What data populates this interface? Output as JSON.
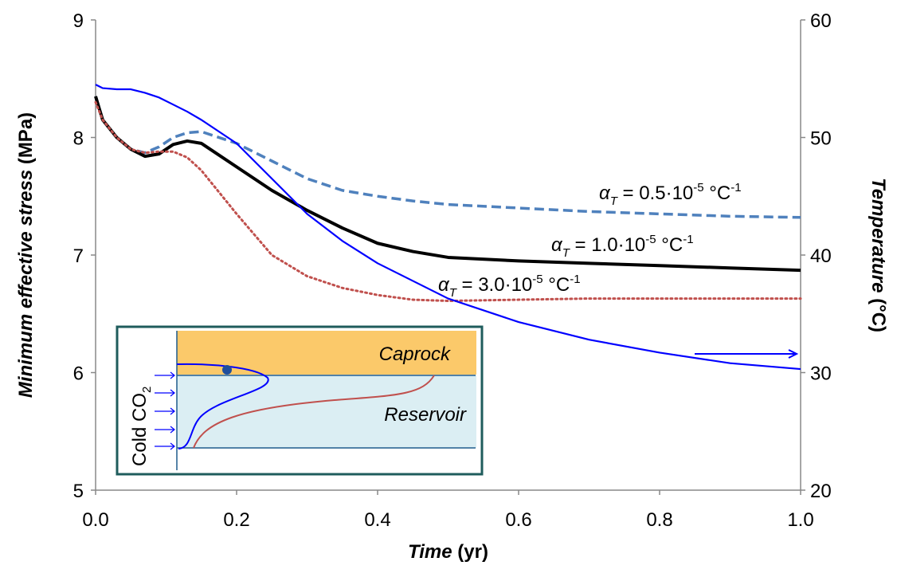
{
  "chart_data": {
    "type": "line",
    "x_label": {
      "main": "Time",
      "unit": "(yr)"
    },
    "y_label": {
      "main": "Minimum effective stress",
      "unit": "(MPa)"
    },
    "y2_label": {
      "main": "Temperature",
      "unit": "(°C)"
    },
    "x": [
      0,
      0.01,
      0.03,
      0.05,
      0.07,
      0.09,
      0.11,
      0.13,
      0.15,
      0.2,
      0.25,
      0.3,
      0.35,
      0.4,
      0.45,
      0.5,
      0.6,
      0.7,
      0.8,
      0.9,
      1.0
    ],
    "xlim": [
      0,
      1
    ],
    "xticks": [
      {
        "value": 0,
        "label": "0.0"
      },
      0.2,
      0.4,
      0.6,
      0.8,
      {
        "value": 1,
        "label": "1.0"
      }
    ],
    "ylim": [
      5,
      9
    ],
    "yticks": [
      5,
      6,
      7,
      8,
      9
    ],
    "y2lim": [
      20,
      60
    ],
    "y2ticks": [
      20,
      30,
      40,
      50,
      60
    ],
    "series": [
      {
        "color": "#4f81bd",
        "style": "dashed",
        "values": [
          8.35,
          8.15,
          8.0,
          7.9,
          7.87,
          7.92,
          8.0,
          8.04,
          8.05,
          7.95,
          7.8,
          7.65,
          7.55,
          7.5,
          7.46,
          7.43,
          7.4,
          7.37,
          7.35,
          7.33,
          7.32
        ]
      },
      {
        "color": "#000000",
        "style": "solid",
        "values": [
          8.35,
          8.15,
          8.0,
          7.9,
          7.84,
          7.86,
          7.94,
          7.97,
          7.95,
          7.75,
          7.55,
          7.38,
          7.23,
          7.1,
          7.03,
          6.98,
          6.95,
          6.93,
          6.91,
          6.89,
          6.87
        ]
      },
      {
        "color": "#c0504d",
        "style": "dotted",
        "values": [
          8.3,
          8.15,
          8.0,
          7.9,
          7.87,
          7.88,
          7.88,
          7.83,
          7.72,
          7.35,
          7.0,
          6.82,
          6.72,
          6.66,
          6.62,
          6.61,
          6.62,
          6.63,
          6.63,
          6.63,
          6.63
        ]
      },
      {
        "color": "#0000ff",
        "style": "thin",
        "axis": "y2",
        "values": [
          54.5,
          54.2,
          54.1,
          54.1,
          53.8,
          53.4,
          52.8,
          52.2,
          51.5,
          49.5,
          46.5,
          43.5,
          41.2,
          39.3,
          37.8,
          36.3,
          34.3,
          32.8,
          31.7,
          30.8,
          30.3
        ]
      }
    ],
    "annotations": [
      {
        "base": "α",
        "sub": "T",
        "eq": " = 0.5·10",
        "exp": "-5",
        "unit": " °C",
        "unit_exp": "-1"
      },
      {
        "base": "α",
        "sub": "T",
        "eq": " = 1.0·10",
        "exp": "-5",
        "unit": " °C",
        "unit_exp": "-1"
      },
      {
        "base": "α",
        "sub": "T",
        "eq": " = 3.0·10",
        "exp": "-5",
        "unit": " °C",
        "unit_exp": "-1"
      }
    ],
    "inset": {
      "caprock": "Caprock",
      "reservoir": "Reservoir",
      "cold": "Cold CO",
      "cold_sub": "2"
    }
  }
}
